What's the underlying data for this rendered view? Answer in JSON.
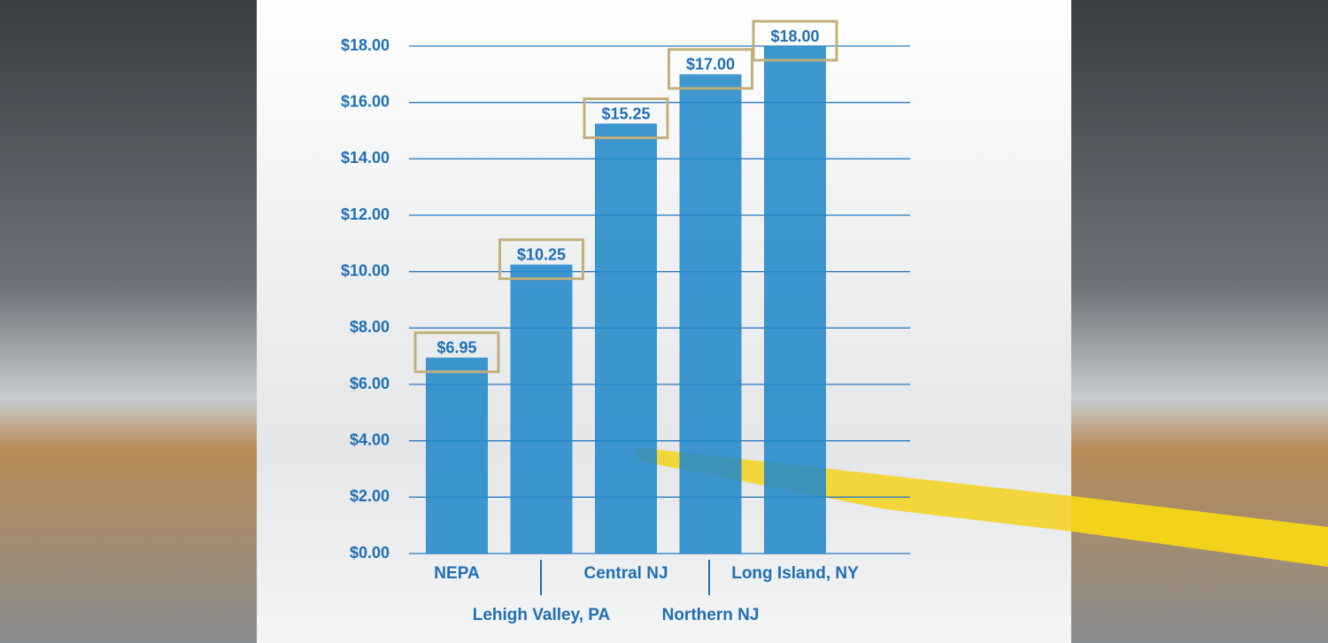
{
  "chart_data": {
    "type": "bar",
    "categories": [
      "NEPA",
      "Lehigh Valley, PA",
      "Central NJ",
      "Northern NJ",
      "Long Island, NY"
    ],
    "values": [
      6.95,
      10.25,
      15.25,
      17.0,
      18.0
    ],
    "value_labels": [
      "$6.95",
      "$10.25",
      "$15.25",
      "$17.00",
      "$18.00"
    ],
    "color": "#2389c8",
    "ylim": [
      0,
      18
    ],
    "yticks": [
      {
        "value": 0,
        "label": "$0.00"
      },
      {
        "value": 2,
        "label": "$2.00"
      },
      {
        "value": 4,
        "label": "$4.00"
      },
      {
        "value": 6,
        "label": "$6.00"
      },
      {
        "value": 8,
        "label": "$8.00"
      },
      {
        "value": 10,
        "label": "$10.00"
      },
      {
        "value": 12,
        "label": "$12.00"
      },
      {
        "value": 14,
        "label": "$14.00"
      },
      {
        "value": 16,
        "label": "$16.00"
      },
      {
        "value": 18,
        "label": "$18.00"
      }
    ],
    "grid": true
  }
}
